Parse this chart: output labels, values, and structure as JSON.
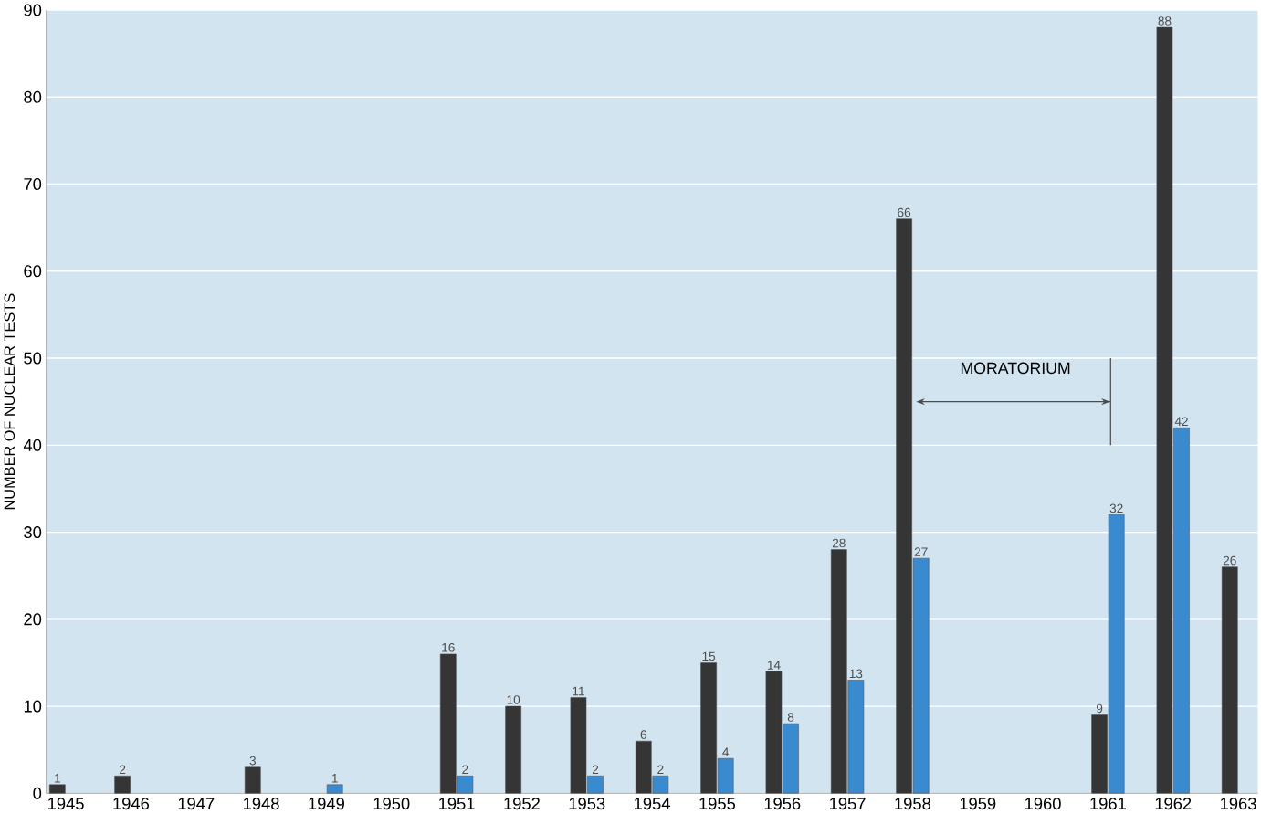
{
  "chart_data": {
    "type": "bar",
    "ylabel": "NUMBER OF NUCLEAR TESTS",
    "categories": [
      "1945",
      "1946",
      "1947",
      "1948",
      "1949",
      "1950",
      "1951",
      "1952",
      "1953",
      "1954",
      "1955",
      "1956",
      "1957",
      "1958",
      "1959",
      "1960",
      "1961",
      "1962",
      "1963"
    ],
    "series": [
      {
        "color": "#353535",
        "values": [
          1,
          2,
          null,
          3,
          null,
          null,
          16,
          10,
          11,
          6,
          15,
          14,
          28,
          66,
          null,
          null,
          9,
          88,
          26
        ]
      },
      {
        "color": "#3a8ad0",
        "values": [
          null,
          null,
          null,
          null,
          1,
          null,
          2,
          null,
          2,
          2,
          4,
          8,
          13,
          27,
          null,
          null,
          32,
          42,
          null
        ]
      }
    ],
    "ylim": [
      0,
      90
    ],
    "yticks": [
      0,
      10,
      20,
      30,
      40,
      50,
      60,
      70,
      80,
      90
    ],
    "grid": "y",
    "data_labels": true,
    "annotations": [
      "MORATORIUM"
    ]
  }
}
